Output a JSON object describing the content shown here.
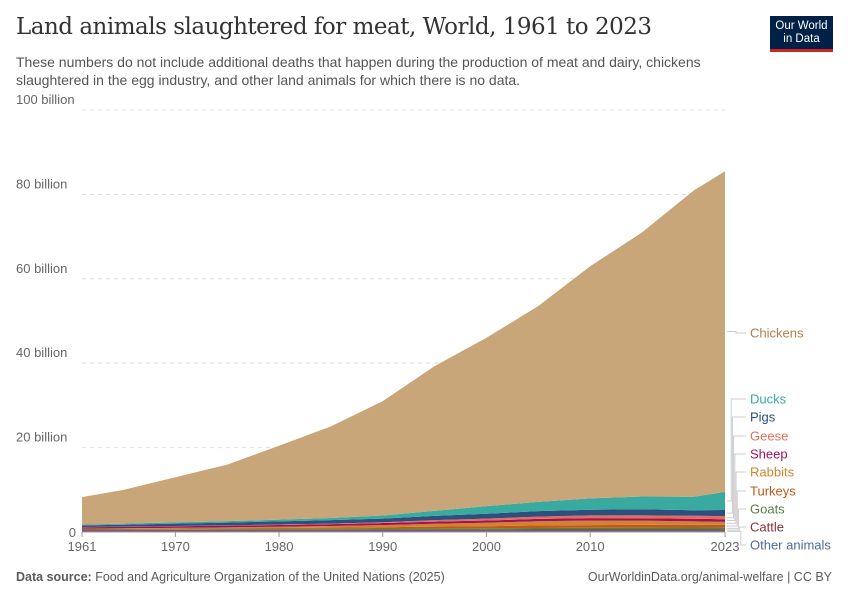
{
  "title": "Land animals slaughtered for meat, World, 1961 to 2023",
  "subtitle": "These numbers do not include additional deaths that happen during the production of meat and dairy, chickens slaughtered in the egg industry, and other land animals for which there is no data.",
  "logo": "Our World in Data",
  "footer": {
    "source_label": "Data source:",
    "source": "Food and Agriculture Organization of the United Nations (2025)",
    "right": "OurWorldinData.org/animal-welfare | CC BY"
  },
  "chart_data": {
    "type": "area",
    "stacked": true,
    "ylim": [
      0,
      100
    ],
    "yunit": "billion",
    "yticks": [
      "0",
      "20 billion",
      "40 billion",
      "60 billion",
      "80 billion",
      "100 billion"
    ],
    "xticks": [
      "1961",
      "1970",
      "1980",
      "1990",
      "2000",
      "2010",
      "2023"
    ],
    "legend_placement": "right",
    "grid": true,
    "x": [
      1961,
      1965,
      1970,
      1975,
      1980,
      1985,
      1990,
      1995,
      2000,
      2005,
      2010,
      2015,
      2020,
      2023
    ],
    "series": [
      {
        "name": "Other animals",
        "color": "#4c6a9c",
        "values": [
          0.3,
          0.3,
          0.3,
          0.3,
          0.3,
          0.3,
          0.3,
          0.3,
          0.3,
          0.3,
          0.3,
          0.3,
          0.3,
          0.3
        ]
      },
      {
        "name": "Cattle",
        "color": "#883039",
        "values": [
          0.17,
          0.18,
          0.2,
          0.22,
          0.23,
          0.24,
          0.25,
          0.26,
          0.27,
          0.28,
          0.29,
          0.3,
          0.3,
          0.31
        ]
      },
      {
        "name": "Goats",
        "color": "#578145",
        "values": [
          0.13,
          0.14,
          0.16,
          0.18,
          0.2,
          0.23,
          0.27,
          0.3,
          0.33,
          0.38,
          0.42,
          0.45,
          0.48,
          0.5
        ]
      },
      {
        "name": "Turkeys",
        "color": "#c05917",
        "values": [
          0.1,
          0.12,
          0.15,
          0.18,
          0.22,
          0.26,
          0.32,
          0.4,
          0.45,
          0.6,
          0.62,
          0.64,
          0.65,
          0.6
        ]
      },
      {
        "name": "Rabbits",
        "color": "#d0842e",
        "values": [
          0.1,
          0.13,
          0.17,
          0.22,
          0.3,
          0.38,
          0.5,
          0.7,
          0.85,
          1.0,
          1.1,
          1.0,
          0.8,
          0.7
        ]
      },
      {
        "name": "Sheep",
        "color": "#a2105c",
        "values": [
          0.33,
          0.35,
          0.38,
          0.4,
          0.42,
          0.45,
          0.48,
          0.5,
          0.52,
          0.54,
          0.55,
          0.56,
          0.6,
          0.62
        ]
      },
      {
        "name": "Geese",
        "color": "#e56e5a",
        "values": [
          0.05,
          0.06,
          0.07,
          0.08,
          0.1,
          0.13,
          0.2,
          0.35,
          0.45,
          0.55,
          0.65,
          0.7,
          0.72,
          0.72
        ]
      },
      {
        "name": "Pigs",
        "color": "#2c4f7e",
        "values": [
          0.38,
          0.45,
          0.55,
          0.65,
          0.76,
          0.83,
          0.85,
          1.0,
          1.15,
          1.3,
          1.35,
          1.45,
          1.3,
          1.45
        ]
      },
      {
        "name": "Ducks",
        "color": "#38aaa0",
        "values": [
          0.2,
          0.25,
          0.3,
          0.35,
          0.4,
          0.5,
          0.75,
          1.2,
          1.8,
          2.2,
          2.7,
          3.0,
          3.2,
          4.3
        ]
      },
      {
        "name": "Chickens",
        "color": "#c9a57a",
        "values": [
          6.5,
          8.0,
          10.7,
          13.4,
          17.5,
          21.7,
          27.1,
          34.3,
          39.9,
          46.4,
          55.0,
          62.6,
          72.6,
          76.0
        ]
      }
    ]
  }
}
